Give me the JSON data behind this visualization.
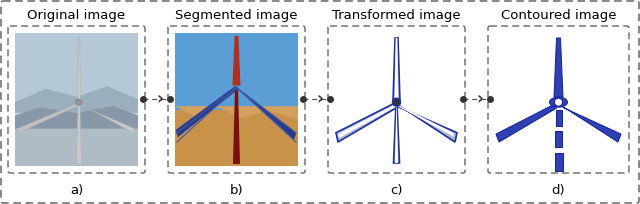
{
  "background_color": "#ffffff",
  "outer_box_color": "#666666",
  "inner_box_color": "#666666",
  "panel_labels": [
    "a)",
    "b)",
    "c)",
    "d)"
  ],
  "panel_titles": [
    "Original image",
    "Segmented image",
    "Transformed image",
    "Contoured image"
  ],
  "arrow_chevron": "›",
  "fig_width": 6.4,
  "fig_height": 2.04,
  "panel_title_fontsize": 9.5,
  "panel_label_fontsize": 9.5,
  "arrow_fontsize": 12,
  "dot_color": "#333333",
  "dash_color": "#555555",
  "sky_color_a": "#b8c8d8",
  "sky_color_a2": "#c8d4dc",
  "hill_color_a": "#98aab8",
  "turbine_color_a": "#c8c8cc",
  "sky_color_b": "#5b9ed6",
  "ground_color_b": "#c8924a",
  "hill_color_b": "#d4a060",
  "tower_color_b": "#7a1010",
  "blade_up_color_b": "#b03020",
  "blade_side_color_b": "#2a3a8a",
  "turbine_blue": "#2030a0",
  "turbine_blue_fill": "#4050c0",
  "contour_fill": "#3040b0",
  "contour_edge": "#1020a0"
}
